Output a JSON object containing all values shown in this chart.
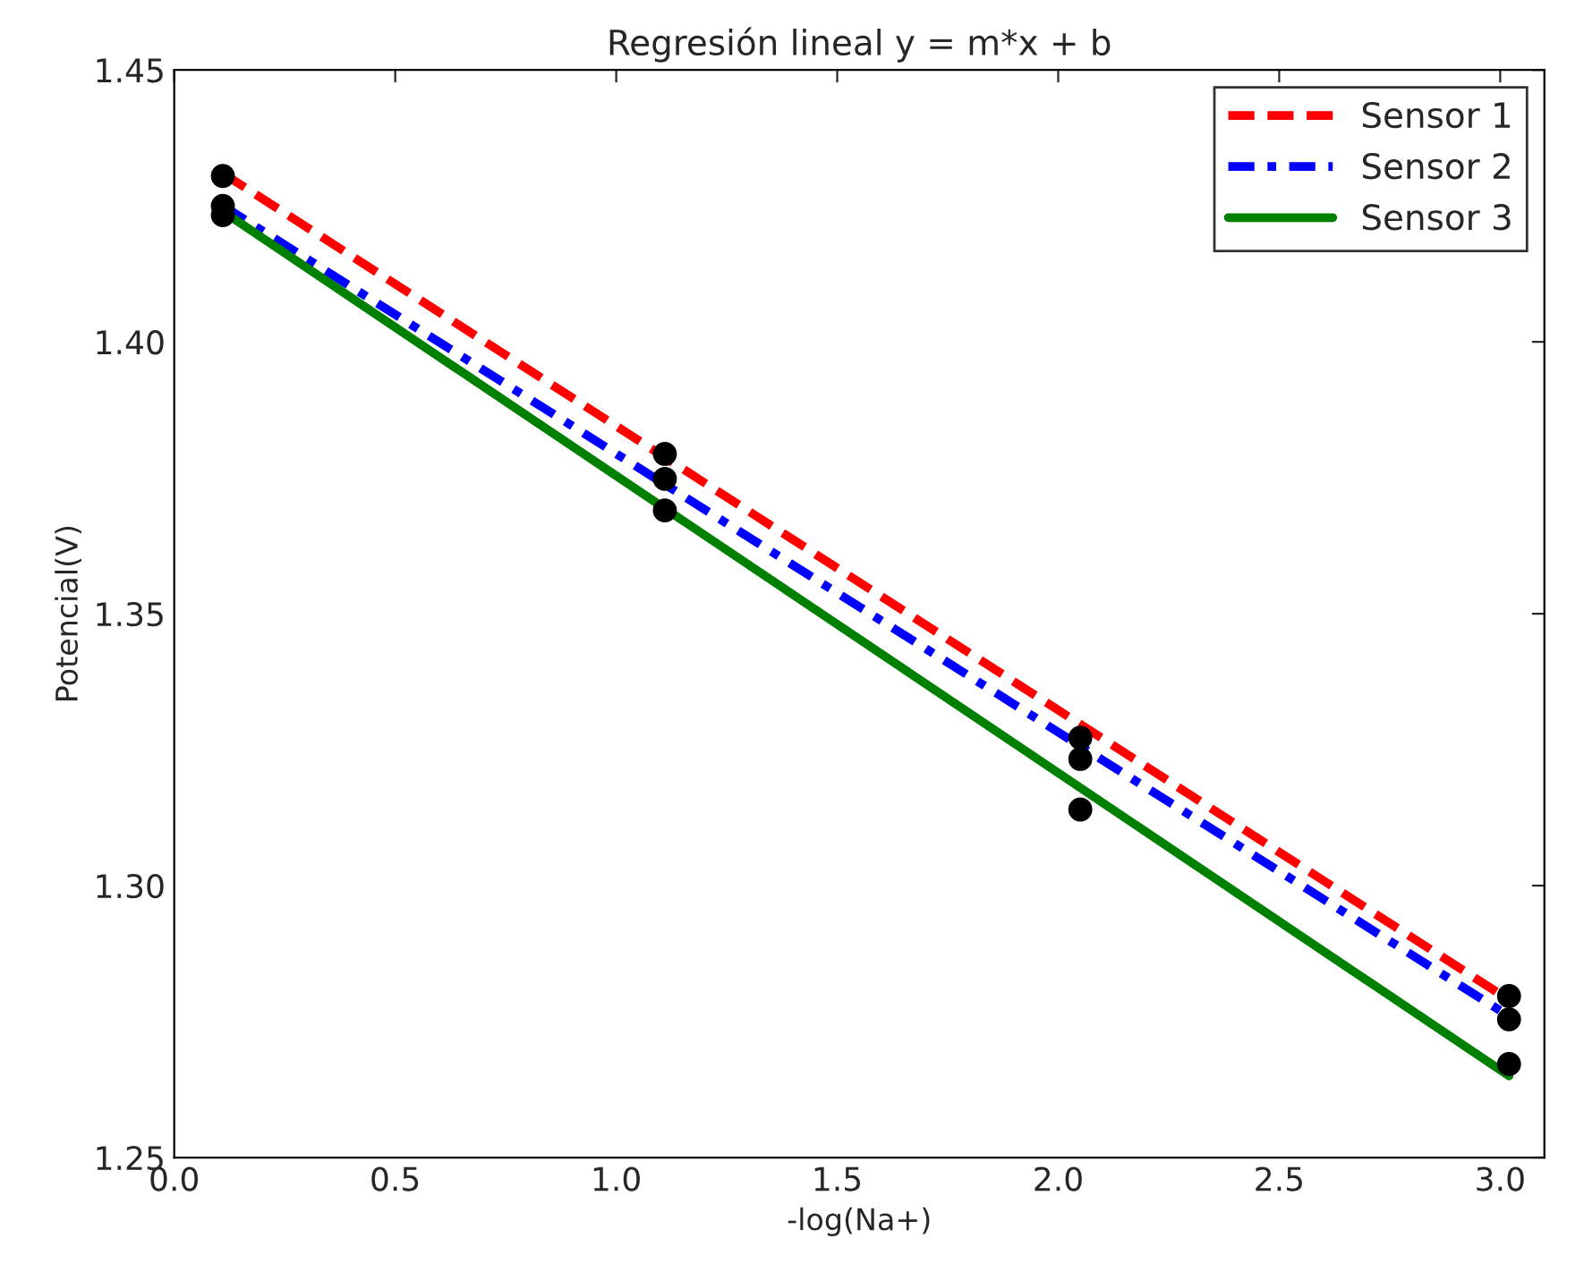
{
  "chart_data": {
    "type": "line",
    "title": "Regresión lineal y = m*x + b",
    "xlabel": "-log(Na+)",
    "ylabel": "Potencial(V)",
    "xlim": [
      0.0,
      3.1
    ],
    "xticks": [
      {
        "value": 0.0,
        "label": "0.0"
      },
      {
        "value": 0.5,
        "label": "0.5"
      },
      {
        "value": 1.0,
        "label": "1.0"
      },
      {
        "value": 1.5,
        "label": "1.5"
      },
      {
        "value": 2.0,
        "label": "2.0"
      },
      {
        "value": 2.5,
        "label": "2.5"
      },
      {
        "value": 3.0,
        "label": "3.0"
      }
    ],
    "ylim": [
      1.25,
      1.45
    ],
    "yticks": [
      {
        "value": 1.25,
        "label": "1.25"
      },
      {
        "value": 1.3,
        "label": "1.30"
      },
      {
        "value": 1.35,
        "label": "1.35"
      },
      {
        "value": 1.4,
        "label": "1.40"
      },
      {
        "value": 1.45,
        "label": "1.45"
      }
    ],
    "grid": false,
    "legend": "top right",
    "series": [
      {
        "name": "Sensor 1",
        "color": "#ff0000",
        "line_style": "dashed",
        "x": [
          0.11,
          3.02
        ],
        "values": [
          1.431,
          1.279
        ]
      },
      {
        "name": "Sensor 2",
        "color": "#0000ff",
        "line_style": "dashdotted",
        "x": [
          0.11,
          3.02
        ],
        "values": [
          1.425,
          1.276
        ]
      },
      {
        "name": "Sensor 3",
        "color": "#008000",
        "line_style": "solid",
        "x": [
          0.11,
          3.02
        ],
        "values": [
          1.424,
          1.265
        ]
      },
      {
        "type": "scatter",
        "color": "#000000",
        "marker": "circle",
        "x": [
          0.11,
          0.11,
          0.11,
          1.11,
          1.11,
          1.11,
          2.05,
          2.05,
          2.05,
          3.02,
          3.02,
          3.02
        ],
        "values": [
          1.4305,
          1.425,
          1.4233,
          1.3794,
          1.3748,
          1.369,
          1.3272,
          1.3233,
          1.314,
          1.2797,
          1.2754,
          1.2672
        ]
      }
    ]
  }
}
